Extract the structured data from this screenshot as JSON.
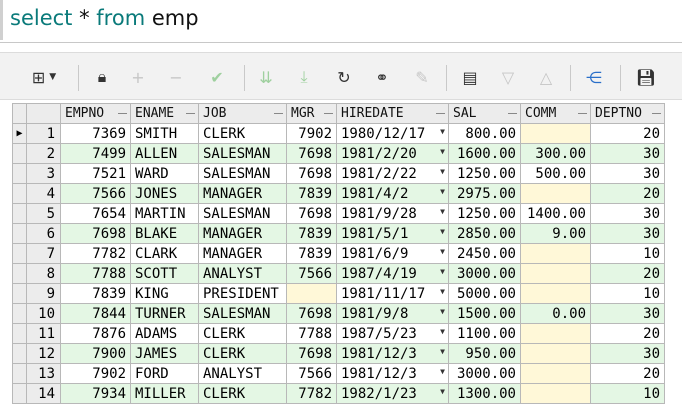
{
  "editor": {
    "kw1": "select",
    "star": "*",
    "kw2": "from",
    "table": "emp"
  },
  "toolbar": {
    "icons": [
      "grid-icon",
      "lock-icon",
      "plus-icon",
      "minus-icon",
      "check-icon",
      "down-arrows-icon",
      "down-arrows-alt-icon",
      "refresh-icon",
      "binoculars-icon",
      "eraser-icon",
      "export-icon",
      "triangle-down-icon",
      "triangle-up-icon",
      "tree-icon",
      "save-icon"
    ]
  },
  "grid": {
    "columns": [
      "EMPNO",
      "ENAME",
      "JOB",
      "MGR",
      "HIREDATE",
      "SAL",
      "COMM",
      "DEPTNO"
    ],
    "current_row_marker": "▶",
    "rows": [
      {
        "n": "1",
        "empno": "7369",
        "ename": "SMITH",
        "job": "CLERK",
        "mgr": "7902",
        "hiredate": "1980/12/17",
        "sal": "800.00",
        "comm": "",
        "deptno": "20"
      },
      {
        "n": "2",
        "empno": "7499",
        "ename": "ALLEN",
        "job": "SALESMAN",
        "mgr": "7698",
        "hiredate": "1981/2/20",
        "sal": "1600.00",
        "comm": "300.00",
        "deptno": "30"
      },
      {
        "n": "3",
        "empno": "7521",
        "ename": "WARD",
        "job": "SALESMAN",
        "mgr": "7698",
        "hiredate": "1981/2/22",
        "sal": "1250.00",
        "comm": "500.00",
        "deptno": "30"
      },
      {
        "n": "4",
        "empno": "7566",
        "ename": "JONES",
        "job": "MANAGER",
        "mgr": "7839",
        "hiredate": "1981/4/2",
        "sal": "2975.00",
        "comm": "",
        "deptno": "20"
      },
      {
        "n": "5",
        "empno": "7654",
        "ename": "MARTIN",
        "job": "SALESMAN",
        "mgr": "7698",
        "hiredate": "1981/9/28",
        "sal": "1250.00",
        "comm": "1400.00",
        "deptno": "30"
      },
      {
        "n": "6",
        "empno": "7698",
        "ename": "BLAKE",
        "job": "MANAGER",
        "mgr": "7839",
        "hiredate": "1981/5/1",
        "sal": "2850.00",
        "comm": "9.00",
        "deptno": "30"
      },
      {
        "n": "7",
        "empno": "7782",
        "ename": "CLARK",
        "job": "MANAGER",
        "mgr": "7839",
        "hiredate": "1981/6/9",
        "sal": "2450.00",
        "comm": "",
        "deptno": "10"
      },
      {
        "n": "8",
        "empno": "7788",
        "ename": "SCOTT",
        "job": "ANALYST",
        "mgr": "7566",
        "hiredate": "1987/4/19",
        "sal": "3000.00",
        "comm": "",
        "deptno": "20"
      },
      {
        "n": "9",
        "empno": "7839",
        "ename": "KING",
        "job": "PRESIDENT",
        "mgr": "",
        "hiredate": "1981/11/17",
        "sal": "5000.00",
        "comm": "",
        "deptno": "10"
      },
      {
        "n": "10",
        "empno": "7844",
        "ename": "TURNER",
        "job": "SALESMAN",
        "mgr": "7698",
        "hiredate": "1981/9/8",
        "sal": "1500.00",
        "comm": "0.00",
        "deptno": "30"
      },
      {
        "n": "11",
        "empno": "7876",
        "ename": "ADAMS",
        "job": "CLERK",
        "mgr": "7788",
        "hiredate": "1987/5/23",
        "sal": "1100.00",
        "comm": "",
        "deptno": "20"
      },
      {
        "n": "12",
        "empno": "7900",
        "ename": "JAMES",
        "job": "CLERK",
        "mgr": "7698",
        "hiredate": "1981/12/3",
        "sal": "950.00",
        "comm": "",
        "deptno": "30"
      },
      {
        "n": "13",
        "empno": "7902",
        "ename": "FORD",
        "job": "ANALYST",
        "mgr": "7566",
        "hiredate": "1981/12/3",
        "sal": "3000.00",
        "comm": "",
        "deptno": "20"
      },
      {
        "n": "14",
        "empno": "7934",
        "ename": "MILLER",
        "job": "CLERK",
        "mgr": "7782",
        "hiredate": "1982/1/23",
        "sal": "1300.00",
        "comm": "",
        "deptno": "10"
      }
    ]
  }
}
